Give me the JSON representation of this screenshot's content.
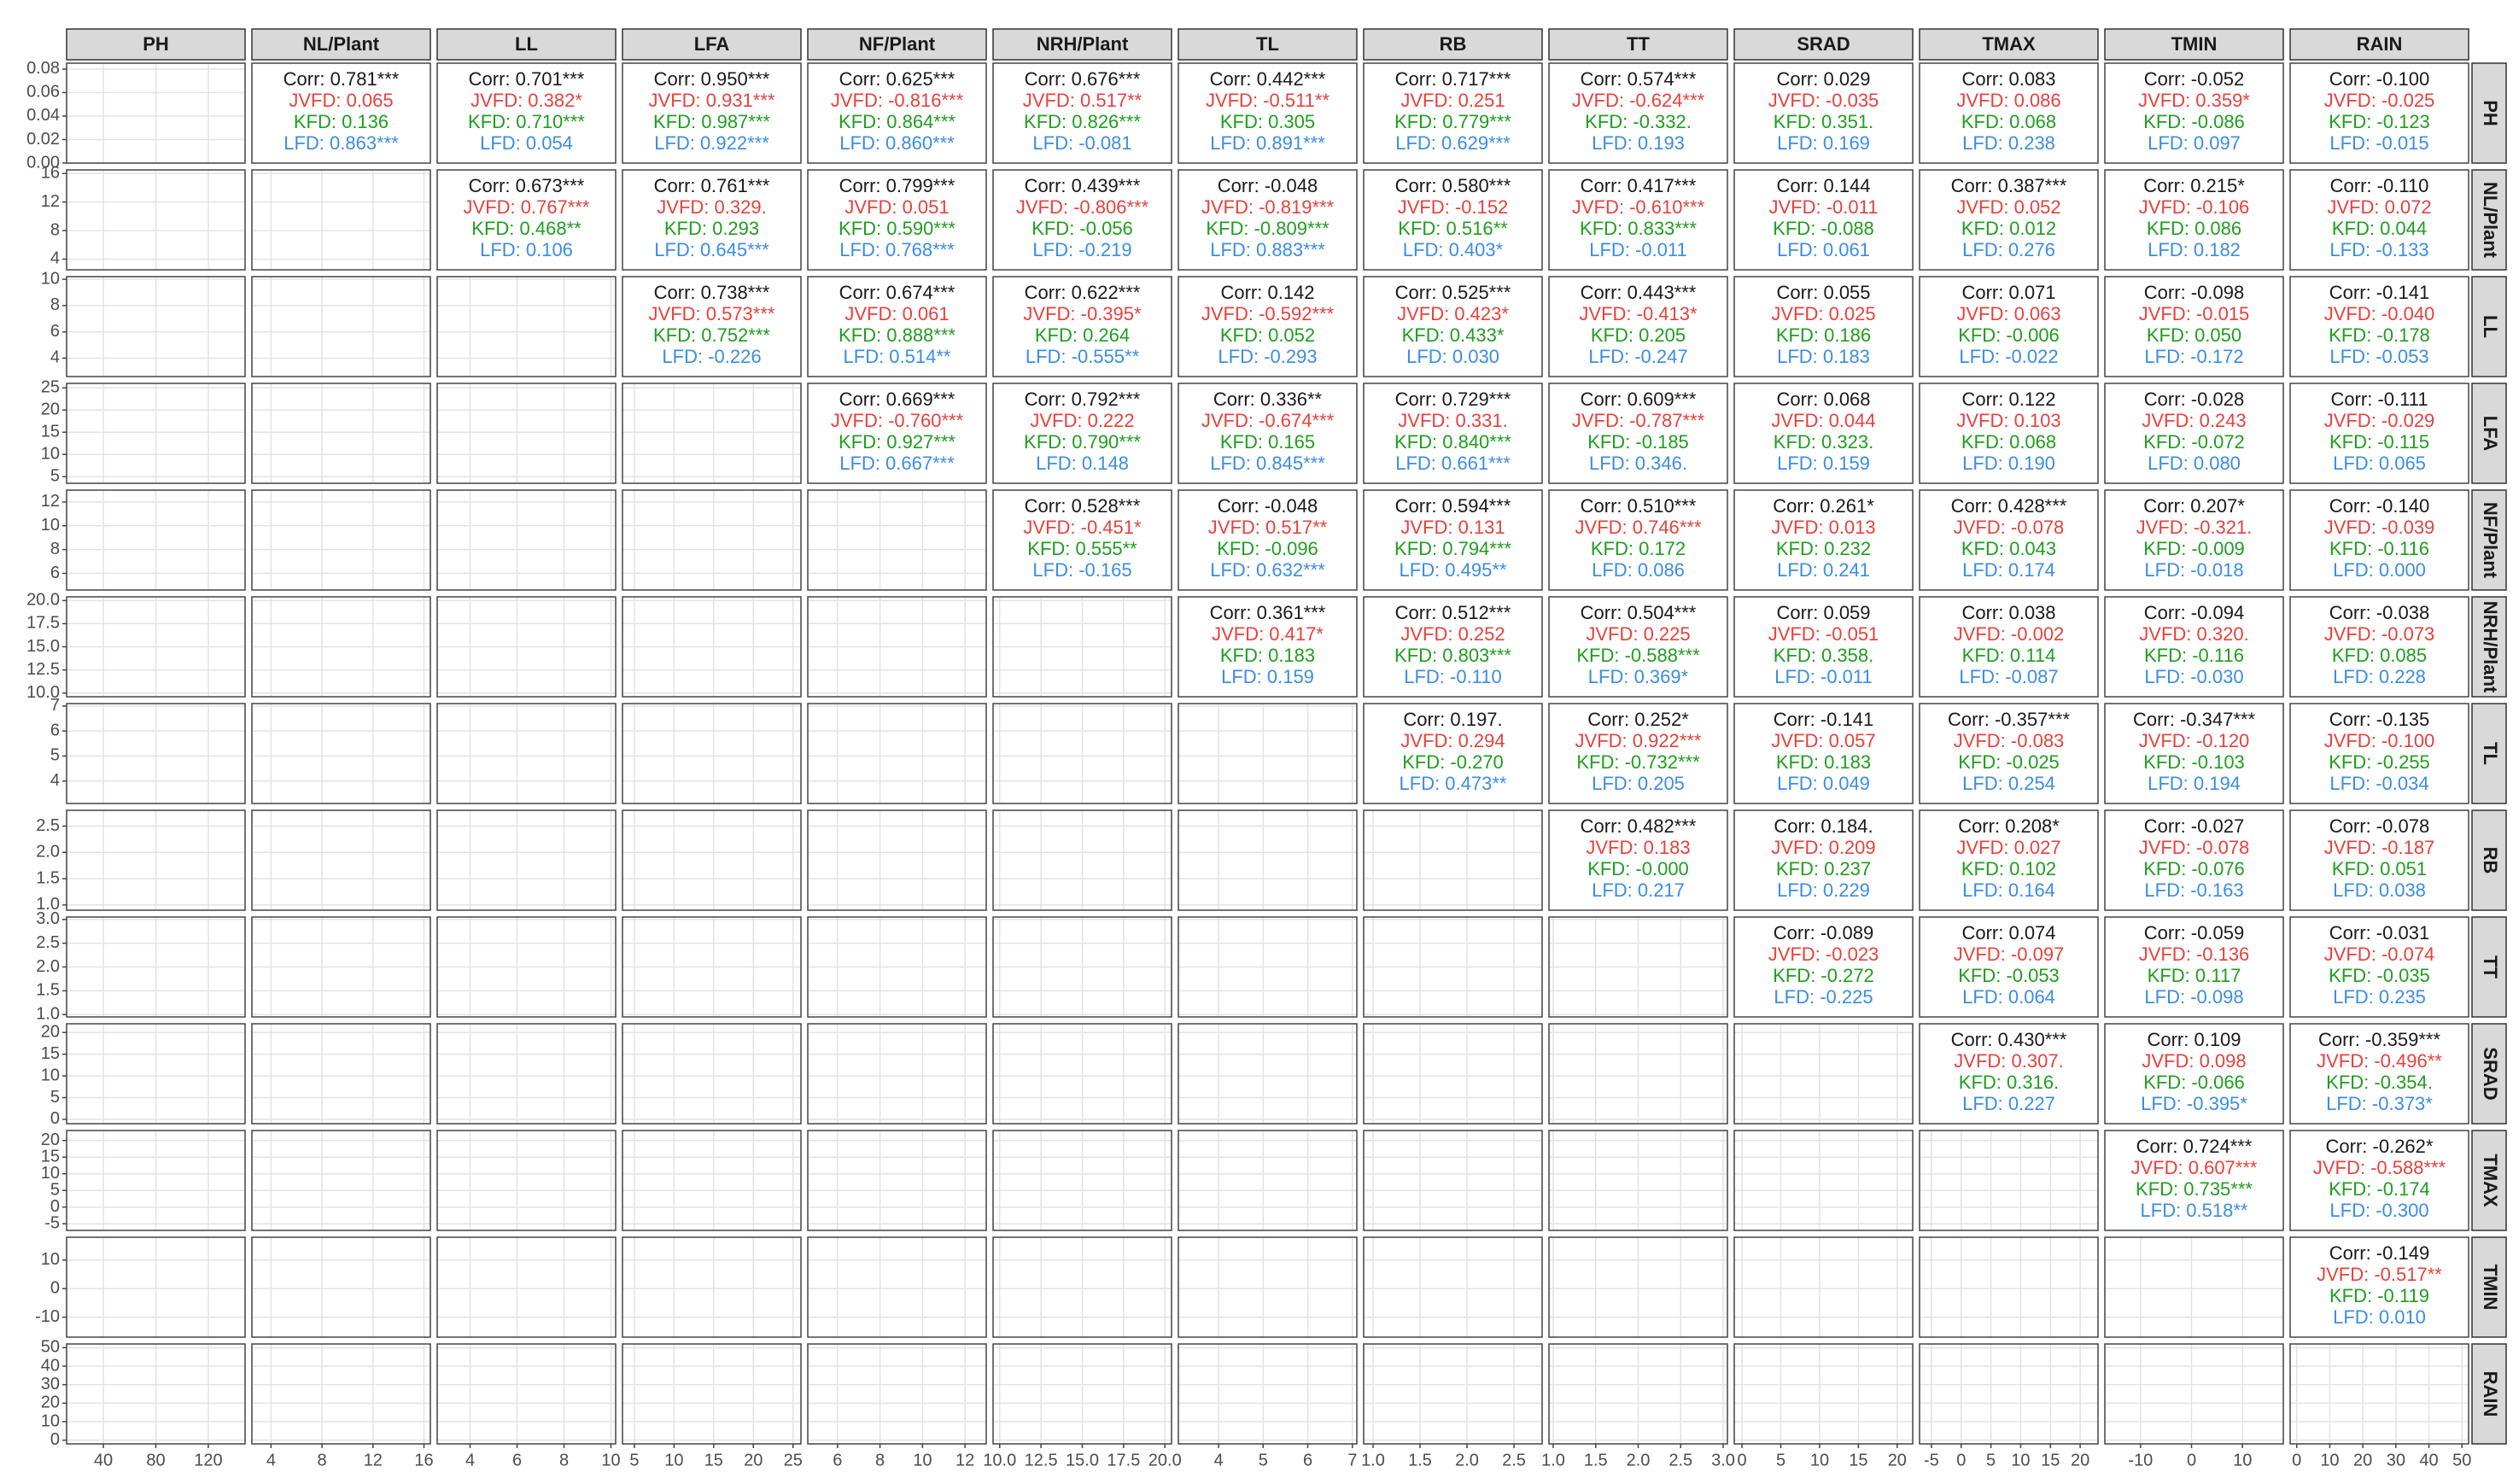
{
  "chart_data": {
    "type": "pairs",
    "variables": [
      "PH",
      "NL/Plant",
      "LL",
      "LFA",
      "NF/Plant",
      "NRH/Plant",
      "TL",
      "RB",
      "TT",
      "SRAD",
      "TMAX",
      "TMIN",
      "RAIN"
    ],
    "line_colors": [
      "#1a1a1a",
      "#e8413c",
      "#1f9e1f",
      "#3a8de6"
    ],
    "grid": true,
    "upper": [
      [
        [
          "Corr: 0.781***",
          "JVFD: 0.065",
          "KFD: 0.136",
          "LFD: 0.863***"
        ],
        [
          "Corr: 0.701***",
          "JVFD: 0.382*",
          "KFD: 0.710***",
          "LFD: 0.054"
        ],
        [
          "Corr: 0.950***",
          "JVFD: 0.931***",
          "KFD: 0.987***",
          "LFD: 0.922***"
        ],
        [
          "Corr: 0.625***",
          "JVFD: -0.816***",
          "KFD: 0.864***",
          "LFD: 0.860***"
        ],
        [
          "Corr: 0.676***",
          "JVFD: 0.517**",
          "KFD: 0.826***",
          "LFD: -0.081"
        ],
        [
          "Corr: 0.442***",
          "JVFD: -0.511**",
          "KFD: 0.305",
          "LFD: 0.891***"
        ],
        [
          "Corr: 0.717***",
          "JVFD: 0.251",
          "KFD: 0.779***",
          "LFD: 0.629***"
        ],
        [
          "Corr: 0.574***",
          "JVFD: -0.624***",
          "KFD: -0.332.",
          "LFD: 0.193"
        ],
        [
          "Corr: 0.029",
          "JVFD: -0.035",
          "KFD: 0.351.",
          "LFD: 0.169"
        ],
        [
          "Corr: 0.083",
          "JVFD: 0.086",
          "KFD: 0.068",
          "LFD: 0.238"
        ],
        [
          "Corr: -0.052",
          "JVFD: 0.359*",
          "KFD: -0.086",
          "LFD: 0.097"
        ],
        [
          "Corr: -0.100",
          "JVFD: -0.025",
          "KFD: -0.123",
          "LFD: -0.015"
        ]
      ],
      [
        [
          "Corr: 0.673***",
          "JVFD: 0.767***",
          "KFD: 0.468**",
          "LFD: 0.106"
        ],
        [
          "Corr: 0.761***",
          "JVFD: 0.329.",
          "KFD: 0.293",
          "LFD: 0.645***"
        ],
        [
          "Corr: 0.799***",
          "JVFD: 0.051",
          "KFD: 0.590***",
          "LFD: 0.768***"
        ],
        [
          "Corr: 0.439***",
          "JVFD: -0.806***",
          "KFD: -0.056",
          "LFD: -0.219"
        ],
        [
          "Corr: -0.048",
          "JVFD: -0.819***",
          "KFD: -0.809***",
          "LFD: 0.883***"
        ],
        [
          "Corr: 0.580***",
          "JVFD: -0.152",
          "KFD: 0.516**",
          "LFD: 0.403*"
        ],
        [
          "Corr: 0.417***",
          "JVFD: -0.610***",
          "KFD: 0.833***",
          "LFD: -0.011"
        ],
        [
          "Corr: 0.144",
          "JVFD: -0.011",
          "KFD: -0.088",
          "LFD: 0.061"
        ],
        [
          "Corr: 0.387***",
          "JVFD: 0.052",
          "KFD: 0.012",
          "LFD: 0.276"
        ],
        [
          "Corr: 0.215*",
          "JVFD: -0.106",
          "KFD: 0.086",
          "LFD: 0.182"
        ],
        [
          "Corr: -0.110",
          "JVFD: 0.072",
          "KFD: 0.044",
          "LFD: -0.133"
        ]
      ],
      [
        [
          "Corr: 0.738***",
          "JVFD: 0.573***",
          "KFD: 0.752***",
          "LFD: -0.226"
        ],
        [
          "Corr: 0.674***",
          "JVFD: 0.061",
          "KFD: 0.888***",
          "LFD: 0.514**"
        ],
        [
          "Corr: 0.622***",
          "JVFD: -0.395*",
          "KFD: 0.264",
          "LFD: -0.555**"
        ],
        [
          "Corr: 0.142",
          "JVFD: -0.592***",
          "KFD: 0.052",
          "LFD: -0.293"
        ],
        [
          "Corr: 0.525***",
          "JVFD: 0.423*",
          "KFD: 0.433*",
          "LFD: 0.030"
        ],
        [
          "Corr: 0.443***",
          "JVFD: -0.413*",
          "KFD: 0.205",
          "LFD: -0.247"
        ],
        [
          "Corr: 0.055",
          "JVFD: 0.025",
          "KFD: 0.186",
          "LFD: 0.183"
        ],
        [
          "Corr: 0.071",
          "JVFD: 0.063",
          "KFD: -0.006",
          "LFD: -0.022"
        ],
        [
          "Corr: -0.098",
          "JVFD: -0.015",
          "KFD: 0.050",
          "LFD: -0.172"
        ],
        [
          "Corr: -0.141",
          "JVFD: -0.040",
          "KFD: -0.178",
          "LFD: -0.053"
        ]
      ],
      [
        [
          "Corr: 0.669***",
          "JVFD: -0.760***",
          "KFD: 0.927***",
          "LFD: 0.667***"
        ],
        [
          "Corr: 0.792***",
          "JVFD: 0.222",
          "KFD: 0.790***",
          "LFD: 0.148"
        ],
        [
          "Corr: 0.336**",
          "JVFD: -0.674***",
          "KFD: 0.165",
          "LFD: 0.845***"
        ],
        [
          "Corr: 0.729***",
          "JVFD: 0.331.",
          "KFD: 0.840***",
          "LFD: 0.661***"
        ],
        [
          "Corr: 0.609***",
          "JVFD: -0.787***",
          "KFD: -0.185",
          "LFD: 0.346."
        ],
        [
          "Corr: 0.068",
          "JVFD: 0.044",
          "KFD: 0.323.",
          "LFD: 0.159"
        ],
        [
          "Corr: 0.122",
          "JVFD: 0.103",
          "KFD: 0.068",
          "LFD: 0.190"
        ],
        [
          "Corr: -0.028",
          "JVFD: 0.243",
          "KFD: -0.072",
          "LFD: 0.080"
        ],
        [
          "Corr: -0.111",
          "JVFD: -0.029",
          "KFD: -0.115",
          "LFD: 0.065"
        ]
      ],
      [
        [
          "Corr: 0.528***",
          "JVFD: -0.451*",
          "KFD: 0.555**",
          "LFD: -0.165"
        ],
        [
          "Corr: -0.048",
          "JVFD: 0.517**",
          "KFD: -0.096",
          "LFD: 0.632***"
        ],
        [
          "Corr: 0.594***",
          "JVFD: 0.131",
          "KFD: 0.794***",
          "LFD: 0.495**"
        ],
        [
          "Corr: 0.510***",
          "JVFD: 0.746***",
          "KFD: 0.172",
          "LFD: 0.086"
        ],
        [
          "Corr: 0.261*",
          "JVFD: 0.013",
          "KFD: 0.232",
          "LFD: 0.241"
        ],
        [
          "Corr: 0.428***",
          "JVFD: -0.078",
          "KFD: 0.043",
          "LFD: 0.174"
        ],
        [
          "Corr: 0.207*",
          "JVFD: -0.321.",
          "KFD: -0.009",
          "LFD: -0.018"
        ],
        [
          "Corr: -0.140",
          "JVFD: -0.039",
          "KFD: -0.116",
          "LFD: 0.000"
        ]
      ],
      [
        [
          "Corr: 0.361***",
          "JVFD: 0.417*",
          "KFD: 0.183",
          "LFD: 0.159"
        ],
        [
          "Corr: 0.512***",
          "JVFD: 0.252",
          "KFD: 0.803***",
          "LFD: -0.110"
        ],
        [
          "Corr: 0.504***",
          "JVFD: 0.225",
          "KFD: -0.588***",
          "LFD: 0.369*"
        ],
        [
          "Corr: 0.059",
          "JVFD: -0.051",
          "KFD: 0.358.",
          "LFD: -0.011"
        ],
        [
          "Corr: 0.038",
          "JVFD: -0.002",
          "KFD: 0.114",
          "LFD: -0.087"
        ],
        [
          "Corr: -0.094",
          "JVFD: 0.320.",
          "KFD: -0.116",
          "LFD: -0.030"
        ],
        [
          "Corr: -0.038",
          "JVFD: -0.073",
          "KFD: 0.085",
          "LFD: 0.228"
        ]
      ],
      [
        [
          "Corr: 0.197.",
          "JVFD: 0.294",
          "KFD: -0.270",
          "LFD: 0.473**"
        ],
        [
          "Corr: 0.252*",
          "JVFD: 0.922***",
          "KFD: -0.732***",
          "LFD: 0.205"
        ],
        [
          "Corr: -0.141",
          "JVFD: 0.057",
          "KFD: 0.183",
          "LFD: 0.049"
        ],
        [
          "Corr: -0.357***",
          "JVFD: -0.083",
          "KFD: -0.025",
          "LFD: 0.254"
        ],
        [
          "Corr: -0.347***",
          "JVFD: -0.120",
          "KFD: -0.103",
          "LFD: 0.194"
        ],
        [
          "Corr: -0.135",
          "JVFD: -0.100",
          "KFD: -0.255",
          "LFD: -0.034"
        ]
      ],
      [
        [
          "Corr: 0.482***",
          "JVFD: 0.183",
          "KFD: -0.000",
          "LFD: 0.217"
        ],
        [
          "Corr: 0.184.",
          "JVFD: 0.209",
          "KFD: 0.237",
          "LFD: 0.229"
        ],
        [
          "Corr: 0.208*",
          "JVFD: 0.027",
          "KFD: 0.102",
          "LFD: 0.164"
        ],
        [
          "Corr: -0.027",
          "JVFD: -0.078",
          "KFD: -0.076",
          "LFD: -0.163"
        ],
        [
          "Corr: -0.078",
          "JVFD: -0.187",
          "KFD: 0.051",
          "LFD: 0.038"
        ]
      ],
      [
        [
          "Corr: -0.089",
          "JVFD: -0.023",
          "KFD: -0.272",
          "LFD: -0.225"
        ],
        [
          "Corr: 0.074",
          "JVFD: -0.097",
          "KFD: -0.053",
          "LFD: 0.064"
        ],
        [
          "Corr: -0.059",
          "JVFD: -0.136",
          "KFD: 0.117",
          "LFD: -0.098"
        ],
        [
          "Corr: -0.031",
          "JVFD: -0.074",
          "KFD: -0.035",
          "LFD: 0.235"
        ]
      ],
      [
        [
          "Corr: 0.430***",
          "JVFD: 0.307.",
          "KFD: 0.316.",
          "LFD: 0.227"
        ],
        [
          "Corr: 0.109",
          "JVFD: 0.098",
          "KFD: -0.066",
          "LFD: -0.395*"
        ],
        [
          "Corr: -0.359***",
          "JVFD: -0.496**",
          "KFD: -0.354.",
          "LFD: -0.373*"
        ]
      ],
      [
        [
          "Corr: 0.724***",
          "JVFD: 0.607***",
          "KFD: 0.735***",
          "LFD: 0.518**"
        ],
        [
          "Corr: -0.262*",
          "JVFD: -0.588***",
          "KFD: -0.174",
          "LFD: -0.300"
        ]
      ],
      [
        [
          "Corr: -0.149",
          "JVFD: -0.517**",
          "KFD: -0.119",
          "LFD: 0.010"
        ]
      ],
      []
    ],
    "x_axes": [
      {
        "lim": [
          12,
          148
        ],
        "ticks": [
          40,
          80,
          120
        ]
      },
      {
        "lim": [
          2.5,
          16.5
        ],
        "ticks": [
          4,
          8,
          12,
          16
        ]
      },
      {
        "lim": [
          2.6,
          10.2
        ],
        "ticks": [
          4,
          6,
          8,
          10
        ]
      },
      {
        "lim": [
          3.5,
          26
        ],
        "ticks": [
          5,
          10,
          15,
          20,
          25
        ]
      },
      {
        "lim": [
          4.6,
          13
        ],
        "ticks": [
          6,
          8,
          10,
          12
        ]
      },
      {
        "lim": [
          9.6,
          20.4
        ],
        "ticks": [
          {
            "value": 10,
            "label": "10.0"
          },
          12.5,
          {
            "value": 15,
            "label": "15.0"
          },
          17.5,
          {
            "value": 20,
            "label": "20.0"
          }
        ]
      },
      {
        "lim": [
          3.1,
          7.1
        ],
        "ticks": [
          4,
          5,
          6,
          7
        ]
      },
      {
        "lim": [
          0.9,
          2.8
        ],
        "ticks": [
          {
            "value": 1,
            "label": "1.0"
          },
          1.5,
          {
            "value": 2,
            "label": "2.0"
          },
          2.5
        ]
      },
      {
        "lim": [
          0.95,
          3.05
        ],
        "ticks": [
          {
            "value": 1,
            "label": "1.0"
          },
          1.5,
          {
            "value": 2,
            "label": "2.0"
          },
          2.5,
          {
            "value": 3,
            "label": "3.0"
          }
        ]
      },
      {
        "lim": [
          -1,
          22
        ],
        "ticks": [
          0,
          5,
          10,
          15,
          20
        ]
      },
      {
        "lim": [
          -7,
          23
        ],
        "ticks": [
          -5,
          0,
          5,
          10,
          15,
          20
        ]
      },
      {
        "lim": [
          -17,
          18
        ],
        "ticks": [
          -10,
          0,
          10
        ]
      },
      {
        "lim": [
          -2,
          52
        ],
        "ticks": [
          0,
          10,
          20,
          30,
          40,
          50
        ]
      }
    ],
    "y_axes": [
      {
        "lim": [
          0,
          0.085
        ],
        "ticks": [
          {
            "value": 0,
            "label": "0.00"
          },
          0.02,
          0.04,
          0.06,
          0.08
        ]
      },
      {
        "lim": [
          2.5,
          16.5
        ],
        "ticks": [
          4,
          8,
          12,
          16
        ]
      },
      {
        "lim": [
          2.6,
          10.2
        ],
        "ticks": [
          4,
          6,
          8,
          10
        ]
      },
      {
        "lim": [
          3.5,
          26
        ],
        "ticks": [
          5,
          10,
          15,
          20,
          25
        ]
      },
      {
        "lim": [
          4.6,
          13
        ],
        "ticks": [
          6,
          8,
          10,
          12
        ]
      },
      {
        "lim": [
          9.6,
          20.4
        ],
        "ticks": [
          {
            "value": 10,
            "label": "10.0"
          },
          12.5,
          {
            "value": 15,
            "label": "15.0"
          },
          17.5,
          {
            "value": 20,
            "label": "20.0"
          }
        ]
      },
      {
        "lim": [
          3.1,
          7.1
        ],
        "ticks": [
          4,
          5,
          6,
          7
        ]
      },
      {
        "lim": [
          0.9,
          2.8
        ],
        "ticks": [
          {
            "value": 1,
            "label": "1.0"
          },
          1.5,
          {
            "value": 2,
            "label": "2.0"
          },
          2.5
        ]
      },
      {
        "lim": [
          0.95,
          3.05
        ],
        "ticks": [
          {
            "value": 1,
            "label": "1.0"
          },
          1.5,
          {
            "value": 2,
            "label": "2.0"
          },
          2.5,
          {
            "value": 3,
            "label": "3.0"
          }
        ]
      },
      {
        "lim": [
          -1,
          22
        ],
        "ticks": [
          0,
          5,
          10,
          15,
          20
        ]
      },
      {
        "lim": [
          -7,
          23
        ],
        "ticks": [
          -5,
          0,
          5,
          10,
          15,
          20
        ]
      },
      {
        "lim": [
          -17,
          18
        ],
        "ticks": [
          -10,
          0,
          10
        ]
      },
      {
        "lim": [
          -2,
          52
        ],
        "ticks": [
          0,
          10,
          20,
          30,
          40,
          50
        ]
      }
    ]
  }
}
